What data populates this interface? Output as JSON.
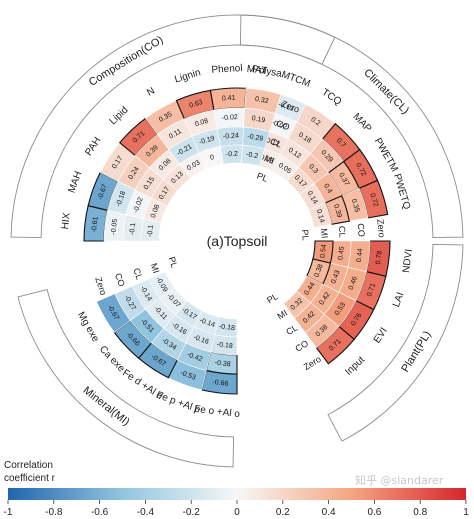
{
  "chart_data": {
    "type": "heatmap",
    "subtype": "circular",
    "title": "(a)Topsoil",
    "colorscale": {
      "min": -1,
      "max": 1,
      "low": "#2166ac",
      "mid": "#f7f7f7",
      "high": "#d6262c"
    },
    "legend": {
      "title_line1": "Correlation",
      "title_line2": "coefficient r",
      "ticks": [
        "-1",
        "-0.8",
        "-0.6",
        "-0.4",
        "-0.2",
        "0",
        "0.2",
        "0.4",
        "0.6",
        "0.8",
        "1"
      ]
    },
    "rings": [
      "PL",
      "MI",
      "CL",
      "CO"
    ],
    "groups": [
      {
        "name": "Climate(CL)",
        "variables": [
          "MAT",
          "MTCM",
          "TCQ",
          "MAP",
          "PWETM",
          "PWETQ"
        ],
        "rings": [
          [
            "0.3",
            "-0.13",
            "0.2",
            "0.7",
            "0.72",
            "0.72"
          ],
          [
            "0.1",
            "-0.02",
            "0.18",
            "0.29",
            "0.37",
            "0.35"
          ],
          [
            "0.1",
            "0.12",
            "0.12",
            "0.3",
            "0.4",
            "0.39"
          ],
          [
            "0.14",
            "0.08",
            "0.05",
            "0.17",
            "0.14",
            "0.14"
          ]
        ],
        "bold": [
          [
            false,
            false,
            false,
            true,
            true,
            true
          ],
          [
            false,
            false,
            false,
            false,
            true,
            false
          ],
          [
            false,
            false,
            false,
            false,
            false,
            true
          ],
          [
            false,
            false,
            false,
            false,
            false,
            false
          ]
        ]
      },
      {
        "name": "Plant(PL)",
        "variables": [
          "NDVI",
          "LAI",
          "EVI",
          "Input"
        ],
        "rings": [
          [
            "0.78",
            "0.71",
            "0.76",
            "0.71"
          ],
          [
            "0.44",
            "0.46",
            "0.53",
            "0.38"
          ],
          [
            "0.45",
            "0.43",
            "0.42",
            "0.42"
          ],
          [
            "0.54",
            "0.38",
            "0.44",
            "0.32"
          ]
        ],
        "bold": [
          [
            true,
            true,
            true,
            true
          ],
          [
            false,
            false,
            false,
            false
          ],
          [
            false,
            false,
            false,
            false
          ],
          [
            true,
            true,
            false,
            false
          ]
        ]
      },
      {
        "name": "Mineral(MI)",
        "variables": [
          "Fe o +Al o",
          "Fe p +Al p",
          "Fe d +Al d",
          "Ca exe",
          "Mg exe"
        ],
        "rings": [
          [
            "-0.66",
            "-0.53",
            "-0.67",
            "-0.66",
            "-0.67"
          ],
          [
            "-0.38",
            "-0.42",
            "-0.34",
            "-0.51",
            "-0.27"
          ],
          [
            "-0.18",
            "-0.16",
            "-0.16",
            "-0.11",
            "-0.14"
          ],
          [
            "-0.18",
            "-0.14",
            "-0.17",
            "-0.07",
            "-0.09"
          ]
        ],
        "bold": [
          [
            true,
            false,
            true,
            true,
            false
          ],
          [
            true,
            false,
            false,
            false,
            false
          ],
          [
            false,
            false,
            false,
            false,
            false
          ],
          [
            false,
            false,
            false,
            false,
            false
          ]
        ]
      },
      {
        "name": "Composition(CO)",
        "variables": [
          "HIX",
          "MAH",
          "PAH",
          "Lipid",
          "N",
          "Lignin",
          "Phenol",
          "Polysa"
        ],
        "rings": [
          [
            "-0.61",
            "-0.67",
            "0.17",
            "0.71",
            "0.35",
            "0.63",
            "0.41",
            "0.32"
          ],
          [
            "-0.05",
            "-0.18",
            "0.24",
            "0.39",
            "0.11",
            "0.08",
            "-0.02",
            "0.19"
          ],
          [
            "-0.1",
            "-0.02",
            "0.15",
            "0.08",
            "-0.21",
            "-0.19",
            "-0.24",
            "-0.29"
          ],
          [
            "-0.1",
            "0.08",
            "0.17",
            "0.13",
            "0.03",
            "0",
            "-0.2",
            "-0.2"
          ]
        ],
        "bold": [
          [
            true,
            true,
            false,
            true,
            false,
            true,
            true,
            false
          ],
          [
            false,
            false,
            false,
            false,
            false,
            false,
            false,
            false
          ],
          [
            false,
            false,
            false,
            false,
            false,
            false,
            false,
            false
          ],
          [
            false,
            false,
            false,
            false,
            false,
            false,
            false,
            false
          ]
        ]
      }
    ]
  },
  "watermark": "知乎 @slandarer"
}
